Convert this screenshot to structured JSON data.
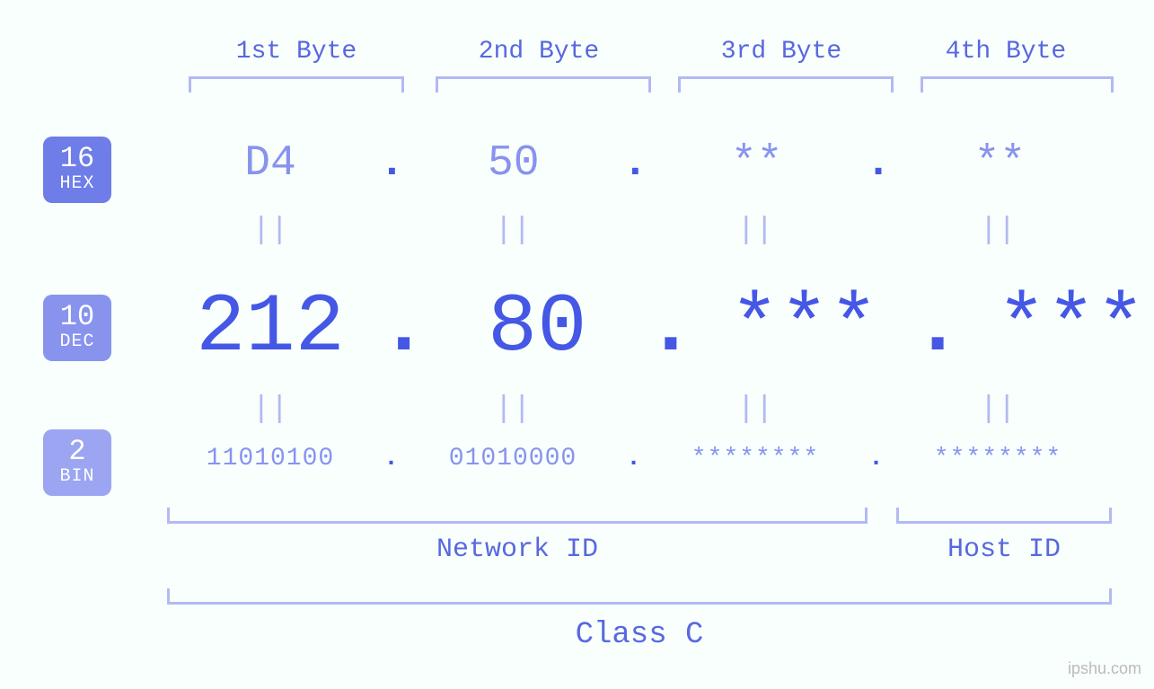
{
  "colors": {
    "background": "#f9fffc",
    "label_text": "#5868e0",
    "bracket": "#b1baf3",
    "light_value": "#8893ee",
    "strong_value": "#4457e5",
    "equals": "#b1baf3",
    "badge_hex_bg": "#6e7de8",
    "badge_dec_bg": "#8893ee",
    "badge_bin_bg": "#9ba5f1",
    "badge_text": "#ffffff",
    "watermark": "#bbbbbb"
  },
  "typography": {
    "font_family": "monospace",
    "byte_label_fontsize": 28,
    "hex_fontsize": 48,
    "dec_fontsize": 92,
    "bin_fontsize": 28,
    "equals_fontsize": 34,
    "section_label_fontsize": 30,
    "class_label_fontsize": 34,
    "badge_num_fontsize": 32,
    "badge_lab_fontsize": 20
  },
  "byte_headers": [
    "1st Byte",
    "2nd Byte",
    "3rd Byte",
    "4th Byte"
  ],
  "bases": {
    "hex": {
      "num": "16",
      "label": "HEX"
    },
    "dec": {
      "num": "10",
      "label": "DEC"
    },
    "bin": {
      "num": "2",
      "label": "BIN"
    }
  },
  "bytes": [
    {
      "hex": "D4",
      "dec": "212",
      "bin": "11010100"
    },
    {
      "hex": "50",
      "dec": "80",
      "bin": "01010000"
    },
    {
      "hex": "**",
      "dec": "***",
      "bin": "********"
    },
    {
      "hex": "**",
      "dec": "***",
      "bin": "********"
    }
  ],
  "separator": ".",
  "equals_symbol": "||",
  "sections": {
    "network": {
      "label": "Network ID",
      "byte_span": [
        0,
        2
      ]
    },
    "host": {
      "label": "Host ID",
      "byte_span": [
        3,
        3
      ]
    }
  },
  "class_label": "Class C",
  "watermark": "ipshu.com"
}
